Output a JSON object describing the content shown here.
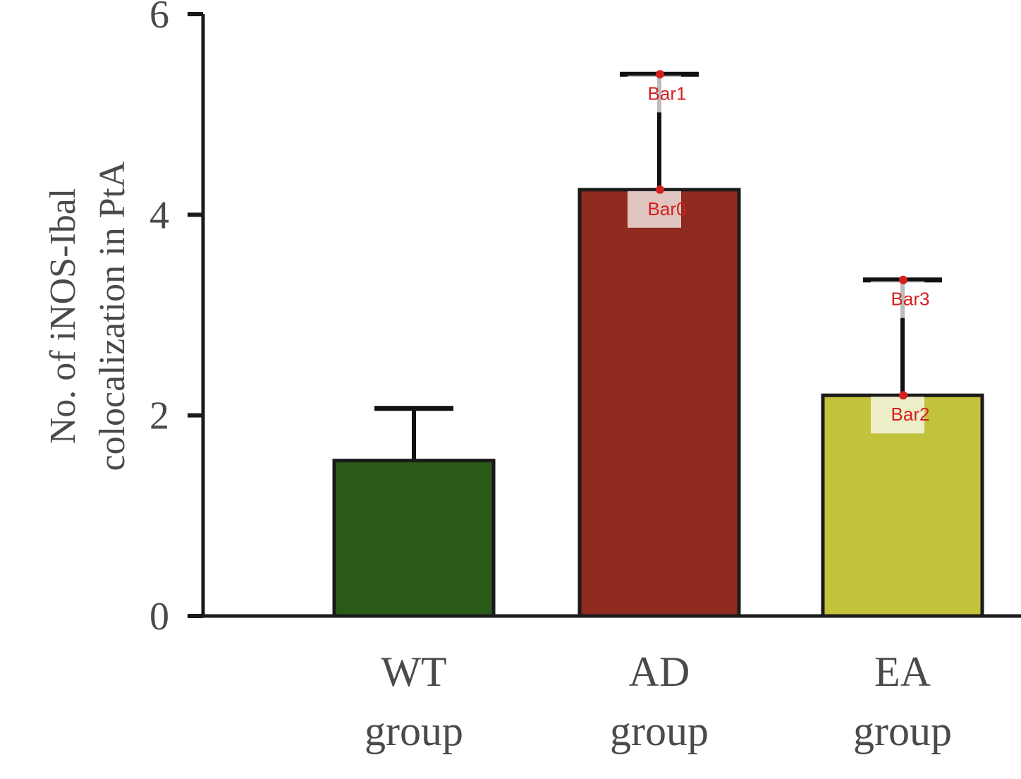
{
  "chart_data": {
    "type": "bar",
    "categories": [
      "WT\ngroup",
      "AD\ngroup",
      "EA\ngroup"
    ],
    "values": [
      1.55,
      4.25,
      2.2
    ],
    "error_upper": [
      2.07,
      5.4,
      3.35
    ],
    "colors": [
      "#2a5a18",
      "#8e2b1e",
      "#c2c23c"
    ],
    "title": "",
    "xlabel": "",
    "ylabel": "No. of iNOS-Ibal\ncolocalization in PtA",
    "ylim": [
      0,
      6
    ],
    "yticks": [
      "0",
      "2",
      "4",
      "6"
    ],
    "grid": false,
    "annotations": [
      {
        "label": "Bar0",
        "category": 1,
        "value": 4.25
      },
      {
        "label": "Bar1",
        "category": 1,
        "value": 5.4
      },
      {
        "label": "Bar2",
        "category": 2,
        "value": 2.2
      },
      {
        "label": "Bar3",
        "category": 2,
        "value": 3.35
      }
    ]
  }
}
